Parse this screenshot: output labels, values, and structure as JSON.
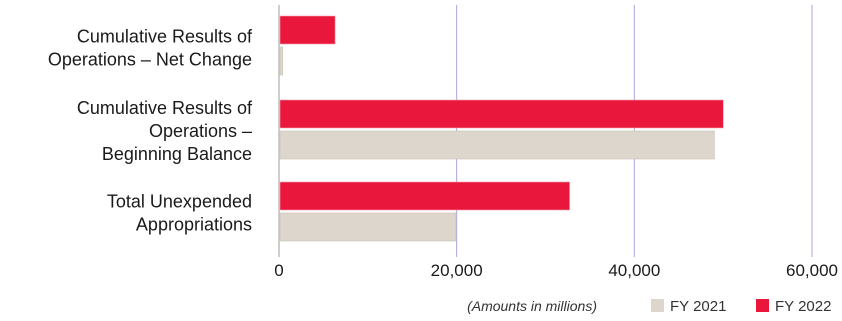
{
  "chart_data": {
    "type": "bar",
    "orientation": "horizontal",
    "categories": [
      [
        "Cumulative Results of",
        "Operations – Net Change"
      ],
      [
        "Cumulative Results of",
        "Operations –",
        "Beginning Balance"
      ],
      [
        "Total Unexpended",
        "Appropriations"
      ]
    ],
    "series": [
      {
        "name": "FY 2022",
        "color": "#e8173b",
        "values": [
          6200,
          49900,
          32600
        ]
      },
      {
        "name": "FY 2021",
        "color": "#ddd6cc",
        "values": [
          300,
          48900,
          19800
        ]
      }
    ],
    "xlim": [
      0,
      60000
    ],
    "xticks": [
      "0",
      "20,000",
      "40,000",
      "60,000"
    ],
    "xtick_values": [
      0,
      20000,
      40000,
      60000
    ],
    "grid": "vertical",
    "grid_color": "#a9a6d8",
    "units_note": "(Amounts in millions)",
    "legend": {
      "position": "bottom-right",
      "items": [
        {
          "name": "FY 2021",
          "color": "#ddd6cc"
        },
        {
          "name": "FY 2022",
          "color": "#e8173b"
        }
      ]
    }
  }
}
